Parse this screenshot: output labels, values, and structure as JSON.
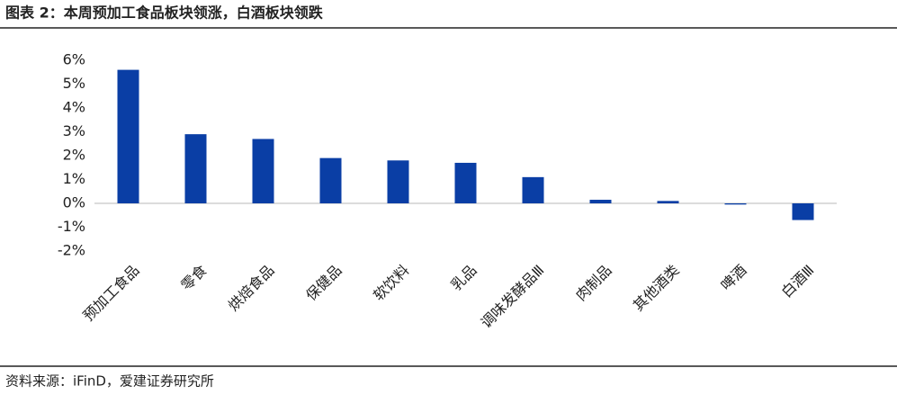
{
  "chart_data": {
    "type": "bar",
    "title": "图表 2：本周预加工食品板块领涨，白酒板块领跌",
    "source": "资料来源：iFinD，爱建证券研究所",
    "categories": [
      "预加工食品",
      "零食",
      "烘焙食品",
      "保健品",
      "软饮料",
      "乳品",
      "调味发酵品Ⅲ",
      "肉制品",
      "其他酒类",
      "啤酒",
      "白酒Ⅲ"
    ],
    "values": [
      5.6,
      2.9,
      2.7,
      1.9,
      1.8,
      1.7,
      1.1,
      0.15,
      0.1,
      -0.05,
      -0.7
    ],
    "color": "#0a3ea5",
    "ylim": [
      -2,
      6
    ],
    "yticks": [
      {
        "value": -2,
        "label": "-2%"
      },
      {
        "value": -1,
        "label": "-1%"
      },
      {
        "value": 0,
        "label": "0%"
      },
      {
        "value": 1,
        "label": "1%"
      },
      {
        "value": 2,
        "label": "2%"
      },
      {
        "value": 3,
        "label": "3%"
      },
      {
        "value": 4,
        "label": "4%"
      },
      {
        "value": 5,
        "label": "5%"
      },
      {
        "value": 6,
        "label": "6%"
      }
    ],
    "grid": false
  }
}
